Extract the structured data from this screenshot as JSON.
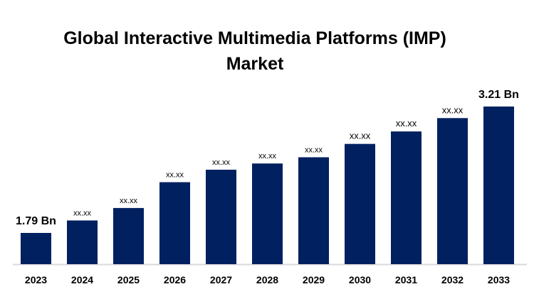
{
  "chart_data": {
    "type": "bar",
    "title": "Global Interactive Multimedia Platforms (IMP) Market",
    "title_lines": [
      "Global Interactive Multimedia Platforms (IMP)",
      "Market"
    ],
    "xlabel": "",
    "ylabel": "",
    "categories": [
      "2023",
      "2024",
      "2025",
      "2026",
      "2027",
      "2028",
      "2029",
      "2030",
      "2031",
      "2032",
      "2033"
    ],
    "values": [
      1.79,
      1.93,
      2.07,
      2.36,
      2.5,
      2.57,
      2.64,
      2.79,
      2.93,
      3.08,
      3.21
    ],
    "data_labels": [
      "1.79 Bn",
      "xx.xx",
      "xx.xx",
      "xx.xx",
      "xx.xx",
      "xx.xx",
      "xx.xx",
      "xx.xx",
      "xx.xx",
      "xx.xx",
      "3.21 Bn"
    ],
    "ylim": [
      1.44,
      3.21
    ],
    "grid": false,
    "legend": "none",
    "bar_color": "#002060",
    "axis_color": "#d9d9d9"
  }
}
